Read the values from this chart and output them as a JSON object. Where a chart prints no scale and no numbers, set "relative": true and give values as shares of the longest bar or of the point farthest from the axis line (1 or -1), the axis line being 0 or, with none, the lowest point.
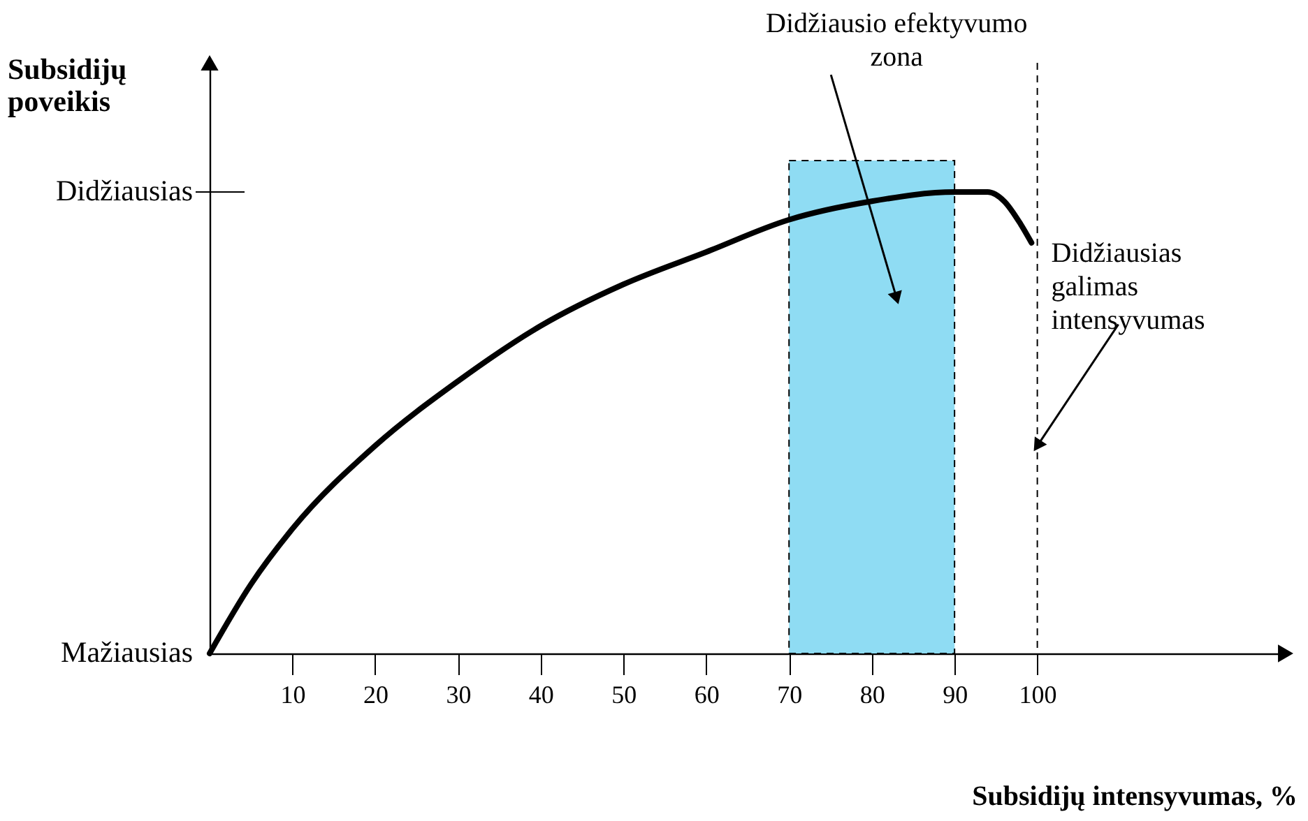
{
  "chart_data": {
    "type": "line",
    "xlabel": "Subsidijų intensyvumas, %",
    "ylabel": "Subsidijų poveikis",
    "relative": true,
    "x": [
      0,
      5,
      10,
      20,
      30,
      40,
      50,
      60,
      70,
      80,
      90,
      94,
      96,
      98,
      99.3
    ],
    "series": [
      {
        "color": "#000000",
        "values": [
          0,
          0.15,
          0.27,
          0.45,
          0.59,
          0.71,
          0.8,
          0.87,
          0.94,
          0.98,
          1.0,
          1.0,
          0.98,
          0.93,
          0.89
        ]
      }
    ],
    "xlim": [
      0,
      130
    ],
    "xticks": [
      10,
      20,
      30,
      40,
      50,
      60,
      70,
      80,
      90,
      100
    ],
    "line_style": "solid",
    "marker": "none",
    "bands": [
      {
        "axis": "x",
        "from": 70,
        "to": 90,
        "color": "#8fdcf3"
      }
    ],
    "ref_lines": [
      {
        "axis": "x",
        "value": 100,
        "line_style": "dashed"
      }
    ],
    "annotations": [
      {
        "text": "Didžiausio efektyvumo\nzona",
        "x": 83,
        "y": 0.77
      },
      {
        "text": "Didžiausias\ngalimas\nintensyvumas",
        "x": 100,
        "y": 0.45
      },
      "Mažiausias",
      "Didžiausias"
    ]
  }
}
